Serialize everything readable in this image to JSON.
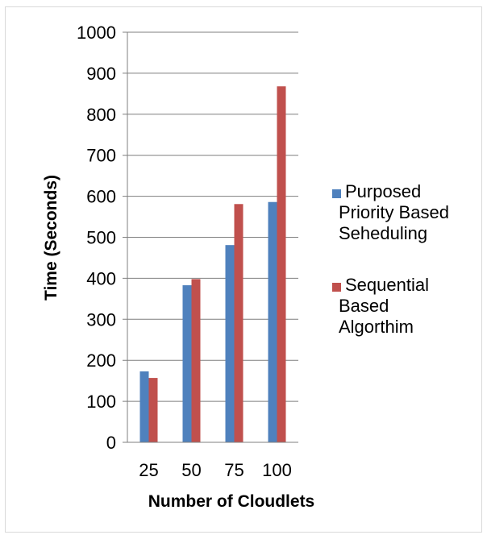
{
  "chart_data": {
    "type": "bar",
    "title": "",
    "xlabel": "Number of Cloudlets",
    "ylabel": "Time (Seconds)",
    "categories": [
      "25",
      "50",
      "75",
      "100"
    ],
    "ylim": [
      0,
      1000
    ],
    "yticks": [
      0,
      100,
      200,
      300,
      400,
      500,
      600,
      700,
      800,
      900,
      1000
    ],
    "grid": true,
    "legend_position": "right",
    "series": [
      {
        "name": "Purposed Priority Based Seheduling",
        "legend_lines": [
          "Purposed",
          "Priority  Based",
          "Seheduling"
        ],
        "color": "#4f81bd",
        "values": [
          173,
          383,
          481,
          586
        ]
      },
      {
        "name": "Sequential Based Algorthim",
        "legend_lines": [
          "Sequential",
          "Based",
          "Algorthim"
        ],
        "color": "#c0504d",
        "values": [
          157,
          398,
          581,
          868
        ]
      }
    ]
  }
}
